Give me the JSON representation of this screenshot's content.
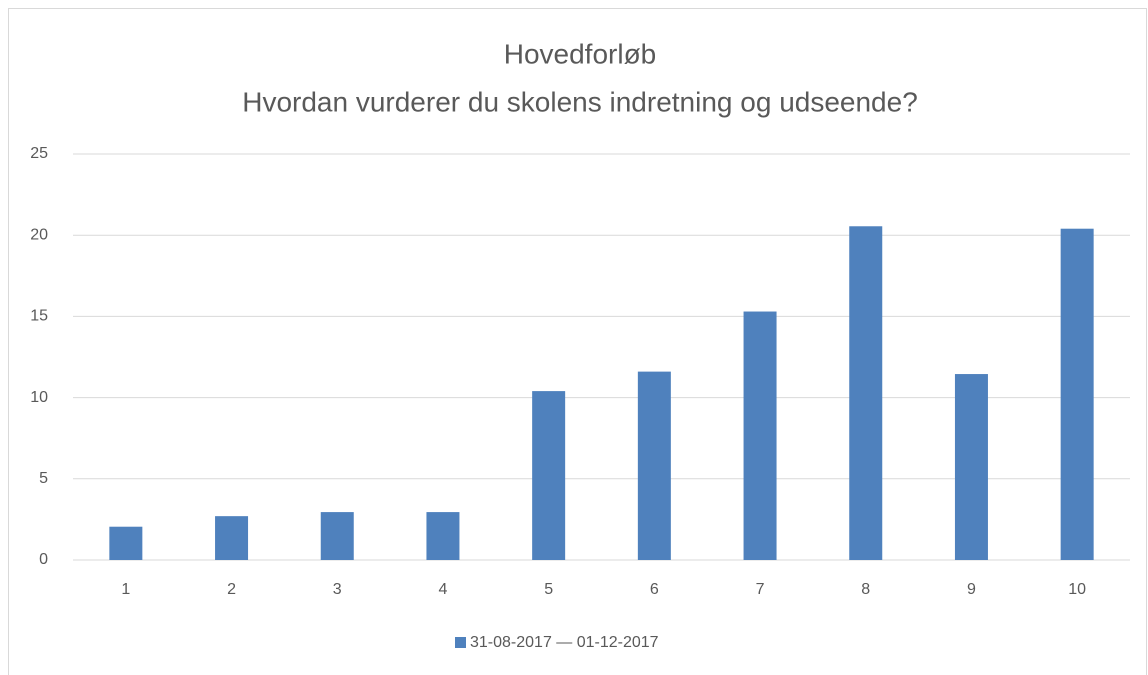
{
  "chart_data": {
    "type": "bar",
    "title": "Hovedforløb",
    "subtitle": "Hvordan vurderer du skolens indretning og udseende?",
    "categories": [
      "1",
      "2",
      "3",
      "4",
      "5",
      "6",
      "7",
      "8",
      "9",
      "10"
    ],
    "series": [
      {
        "name": "31-08-2017 — 01-12-2017",
        "color": "#4f81bd",
        "values": [
          2.05,
          2.7,
          2.95,
          2.95,
          10.4,
          11.6,
          15.3,
          20.55,
          11.45,
          20.4
        ]
      }
    ],
    "ylim": [
      0,
      25
    ],
    "yticks": [
      0,
      5,
      10,
      15,
      20,
      25
    ],
    "grid": true,
    "legend": "bottom"
  }
}
